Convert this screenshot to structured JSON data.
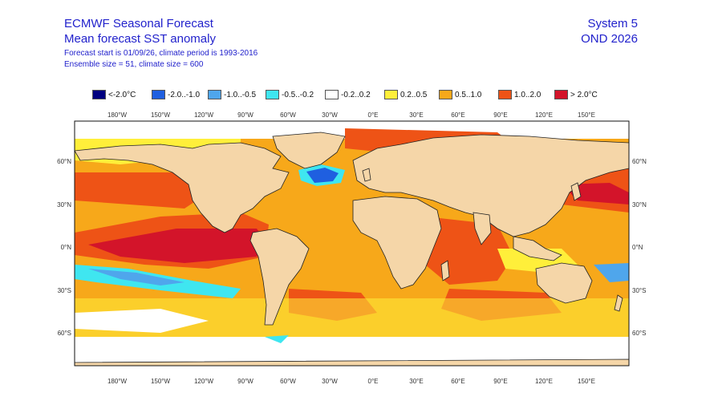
{
  "header": {
    "title": "ECMWF Seasonal Forecast",
    "subtitle": "Mean forecast SST anomaly",
    "forecast_info": "Forecast start is 01/09/26, climate period is 1993-2016",
    "ensemble_info": "Ensemble size = 51, climate size = 600",
    "system": "System 5",
    "period": "OND 2026"
  },
  "legend": [
    {
      "label": "<-2.0°C",
      "color": "#00007f"
    },
    {
      "label": "-2.0..-1.0",
      "color": "#1f5fe0"
    },
    {
      "label": "-1.0..-0.5",
      "color": "#4fa6ec"
    },
    {
      "label": "-0.5..-0.2",
      "color": "#3fe6f0"
    },
    {
      "label": "-0.2..0.2",
      "color": "#ffffff"
    },
    {
      "label": "0.2..0.5",
      "color": "#ffef3a"
    },
    {
      "label": "0.5..1.0",
      "color": "#f7a81a"
    },
    {
      "label": "1.0..2.0",
      "color": "#ee5316"
    },
    {
      "label": "> 2.0°C",
      "color": "#d3142a"
    }
  ],
  "axes": {
    "lon_labels": [
      "180°W",
      "150°W",
      "120°W",
      "90°W",
      "60°W",
      "30°W",
      "0°E",
      "30°E",
      "60°E",
      "90°E",
      "120°E",
      "150°E"
    ],
    "lat_labels": [
      "60°N",
      "30°N",
      "0°N",
      "30°S",
      "60°S"
    ]
  },
  "colors": {
    "land": "#f5d6a8",
    "title_text": "#2222cc"
  }
}
